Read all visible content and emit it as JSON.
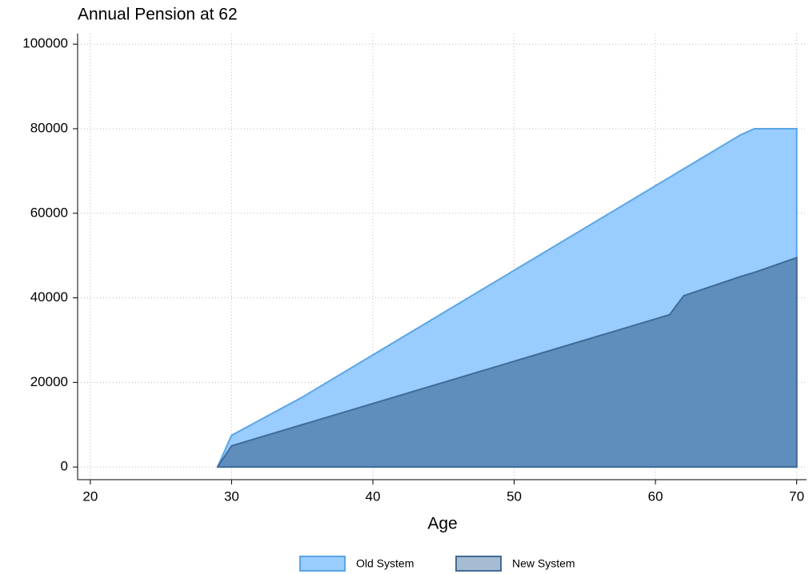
{
  "chart_data": {
    "type": "area",
    "title": "Annual Pension at 62",
    "x_label": "Age",
    "x": [
      29,
      30,
      35,
      61,
      62,
      66,
      67,
      70
    ],
    "series": [
      {
        "name": "Old System",
        "color": "#99ccff",
        "edge": "#5aa5e6",
        "values": [
          0,
          7500,
          16500,
          68500,
          70500,
          78500,
          80000,
          80000
        ]
      },
      {
        "name": "New System",
        "color": "#4d7aa6",
        "edge": "#3f6b96",
        "values": [
          0,
          5000,
          10000,
          36000,
          40500,
          45000,
          46000,
          49500
        ]
      }
    ],
    "xlim": [
      19.1,
      70.7
    ],
    "xticks": [
      20,
      30,
      40,
      50,
      60,
      70
    ],
    "ylim": [
      -3000,
      102500
    ],
    "yticks": [
      0,
      20000,
      40000,
      60000,
      80000,
      100000
    ],
    "grid": true,
    "legend": "bottom"
  }
}
